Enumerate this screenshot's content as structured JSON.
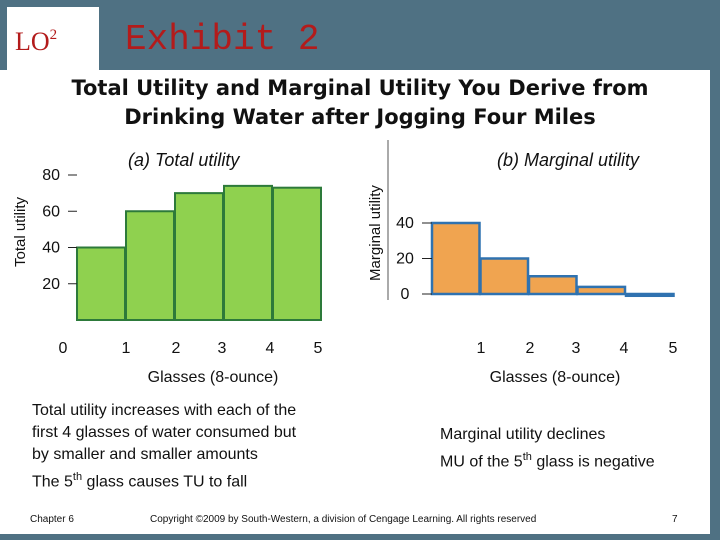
{
  "header": {
    "lo_label": "LO",
    "lo_superscript": "2",
    "exhibit": "Exhibit 2",
    "title_line1": "Total Utility and Marginal Utility You Derive from",
    "title_line2": "Drinking Water after Jogging Four Miles"
  },
  "chart_data": [
    {
      "type": "bar",
      "title": "(a) Total utility",
      "xlabel": "Glasses (8-ounce)",
      "ylabel": "Total utility",
      "categories": [
        "1",
        "2",
        "3",
        "4",
        "5"
      ],
      "values": [
        40,
        60,
        70,
        74,
        73
      ],
      "ylim": [
        0,
        90
      ],
      "yticks": [
        20,
        40,
        60,
        80
      ],
      "origin_label": "0",
      "x_tick_labels": [
        "0",
        "1",
        "2",
        "3",
        "4",
        "5"
      ],
      "color": "#8fd14f",
      "edge_color": "#2d7a3a"
    },
    {
      "type": "bar",
      "title": "(b) Marginal utility",
      "xlabel": "Glasses (8-ounce)",
      "ylabel": "Marginal utility",
      "categories": [
        "1",
        "2",
        "3",
        "4",
        "5"
      ],
      "values": [
        40,
        20,
        10,
        4,
        -1
      ],
      "ylim": [
        -5,
        55
      ],
      "yticks": [
        0,
        20,
        40
      ],
      "color": "#f0a450",
      "edge_color": "#2f72b0"
    }
  ],
  "captions": {
    "left": [
      "Total utility increases with each of the",
      "first 4 glasses of water consumed but",
      "by smaller and smaller amounts"
    ],
    "left_last": {
      "pre": "The 5",
      "sup": "th",
      "post": " glass causes TU to fall"
    },
    "right_line1": "Marginal utility declines",
    "right_line2": {
      "pre": "MU of the 5",
      "sup": "th",
      "post": " glass is negative"
    }
  },
  "footer": {
    "chapter": "Chapter 6",
    "copyright": "Copyright ©2009 by South-Western, a division of Cengage Learning.  All rights reserved",
    "page": "7"
  }
}
